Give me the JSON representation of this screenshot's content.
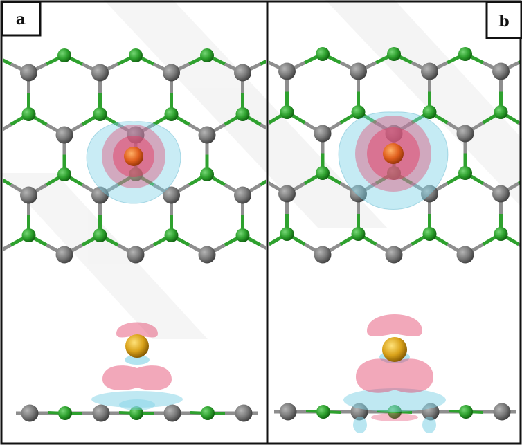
{
  "panels": [
    {
      "id": "a",
      "label": "a"
    },
    {
      "id": "b",
      "label": "b"
    }
  ],
  "colors": {
    "carbon": "#808080",
    "nitrogen": "#2ea12e",
    "adatom_top_view": "#e0601e",
    "adatom_side_view": "#d9a21a",
    "isosurface_accumulation": "#e23d66",
    "isosurface_depletion": "#7fd2e6",
    "bond_gray": "#8e8e8e",
    "bond_green": "#2ea12e",
    "frame": "#111111"
  }
}
